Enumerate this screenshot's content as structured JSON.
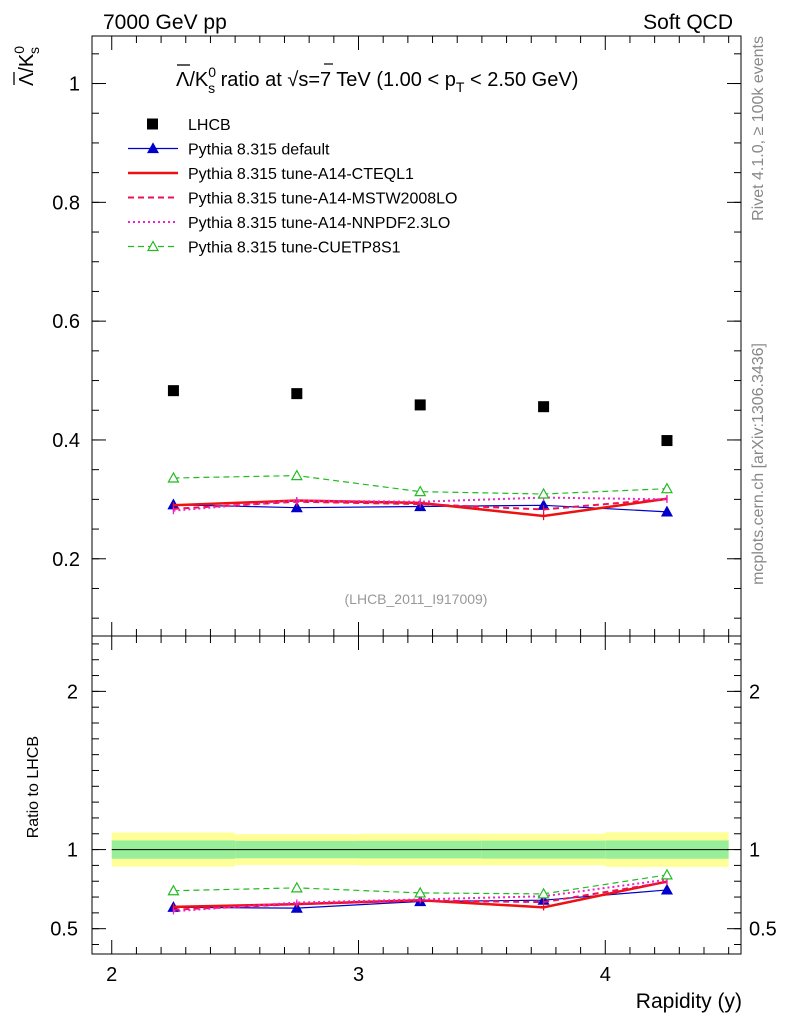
{
  "header": {
    "energy_label": "7000 GeV pp",
    "category_label": "Soft QCD"
  },
  "side_labels": {
    "rivet": "Rivet 4.1.0, ≥ 100k events",
    "mcplots": "mcplots.cern.ch [arXiv:1306.3436]"
  },
  "analysis_id": "(LHCB_2011_I917009)",
  "chart_data": [
    {
      "type": "scatter",
      "panel": "main",
      "title": "Λ̄/K⁰s ratio at √s=7 TeV (1.00 < pT < 2.50 GeV)",
      "title_parts": {
        "prefix": "/K",
        "sup": "0",
        "sub": "s",
        "mid": " ratio at ",
        "sqrt_s": "s=7 TeV (1.00 < p",
        "pt_sub": "T",
        "suffix": " < 2.50 GeV)"
      },
      "ylabel": "Λ̄/K⁰s",
      "ylabel_parts": {
        "lambda": "Λ",
        "k": "/K",
        "sup": "0",
        "sub": "s"
      },
      "xlim": [
        1.92,
        4.55
      ],
      "ylim": [
        0.07,
        1.08
      ],
      "yticks": [
        0.2,
        0.4,
        0.6,
        0.8,
        1
      ],
      "ytick_labels": [
        "0.2",
        "0.4",
        "0.6",
        "0.8",
        "1"
      ],
      "x": [
        2.25,
        2.75,
        3.25,
        3.75,
        4.25
      ],
      "series": [
        {
          "name": "LHCB",
          "style": "data",
          "color": "#000000",
          "values": [
            0.483,
            0.478,
            0.459,
            0.456,
            0.399
          ]
        },
        {
          "name": "Pythia 8.315 default",
          "style": "solid-triangle",
          "color": "#0000cc",
          "values": [
            0.291,
            0.286,
            0.288,
            0.29,
            0.279
          ],
          "errors": [
            0.006,
            0.006,
            0.006,
            0.006,
            0.006
          ]
        },
        {
          "name": "Pythia 8.315 tune-A14-CTEQL1",
          "style": "thick-solid",
          "color": "#ee1111",
          "values": [
            0.29,
            0.298,
            0.294,
            0.272,
            0.301
          ],
          "errors": [
            0.005,
            0.006,
            0.006,
            0.007,
            0.006
          ]
        },
        {
          "name": "Pythia 8.315 tune-A14-MSTW2008LO",
          "style": "dashed",
          "color": "#ee1155",
          "values": [
            0.284,
            0.296,
            0.292,
            0.283,
            0.301
          ],
          "errors": [
            0.008,
            0.008,
            0.006,
            0.007,
            0.006
          ]
        },
        {
          "name": "Pythia 8.315 tune-A14-NNPDF2.3LO",
          "style": "dotted",
          "color": "#ee22cc",
          "values": [
            0.281,
            0.298,
            0.296,
            0.303,
            0.3
          ],
          "errors": [
            0.006,
            0.006,
            0.006,
            0.006,
            0.006
          ]
        },
        {
          "name": "Pythia 8.315 tune-CUETP8S1",
          "style": "dashed-open-triangle",
          "color": "#22bb22",
          "values": [
            0.336,
            0.34,
            0.313,
            0.309,
            0.318
          ],
          "errors": [
            0.006,
            0.007,
            0.007,
            0.006,
            0.008
          ]
        }
      ]
    },
    {
      "type": "line",
      "panel": "ratio",
      "ylabel": "Ratio to LHCB",
      "xlabel": "Rapidity (y)",
      "xlim": [
        1.92,
        4.55
      ],
      "ylim": [
        0.34,
        2.35
      ],
      "yticks": [
        0.5,
        1,
        2
      ],
      "ytick_labels": [
        "0.5",
        "1",
        "2"
      ],
      "xticks": [
        2,
        3,
        4
      ],
      "xtick_labels": [
        "2",
        "3",
        "4"
      ],
      "x": [
        2.25,
        2.75,
        3.25,
        3.75,
        4.25
      ],
      "reference_bins": [
        [
          2.0,
          2.5
        ],
        [
          2.5,
          3.0
        ],
        [
          3.0,
          3.5
        ],
        [
          3.5,
          4.0
        ],
        [
          4.0,
          4.5
        ]
      ],
      "band_inner_halfwidth": [
        0.058,
        0.055,
        0.056,
        0.057,
        0.058
      ],
      "band_outer_halfwidth": [
        0.108,
        0.098,
        0.1,
        0.1,
        0.11
      ],
      "band_colors": {
        "inner": "#99ee99",
        "outer": "#ffff99"
      },
      "series": [
        {
          "name": "Pythia 8.315 default",
          "color": "#0000cc",
          "values": [
            0.635,
            0.63,
            0.672,
            0.68,
            0.745
          ]
        },
        {
          "name": "Pythia 8.315 tune-A14-CTEQL1",
          "color": "#ee1111",
          "values": [
            0.638,
            0.655,
            0.68,
            0.635,
            0.798
          ]
        },
        {
          "name": "Pythia 8.315 tune-A14-MSTW2008LO",
          "color": "#ee1155",
          "values": [
            0.62,
            0.655,
            0.678,
            0.668,
            0.795
          ]
        },
        {
          "name": "Pythia 8.315 tune-A14-NNPDF2.3LO",
          "color": "#ee22cc",
          "values": [
            0.61,
            0.665,
            0.685,
            0.705,
            0.81
          ]
        },
        {
          "name": "Pythia 8.315 tune-CUETP8S1",
          "color": "#22bb22",
          "values": [
            0.74,
            0.758,
            0.726,
            0.72,
            0.84
          ]
        }
      ]
    }
  ]
}
